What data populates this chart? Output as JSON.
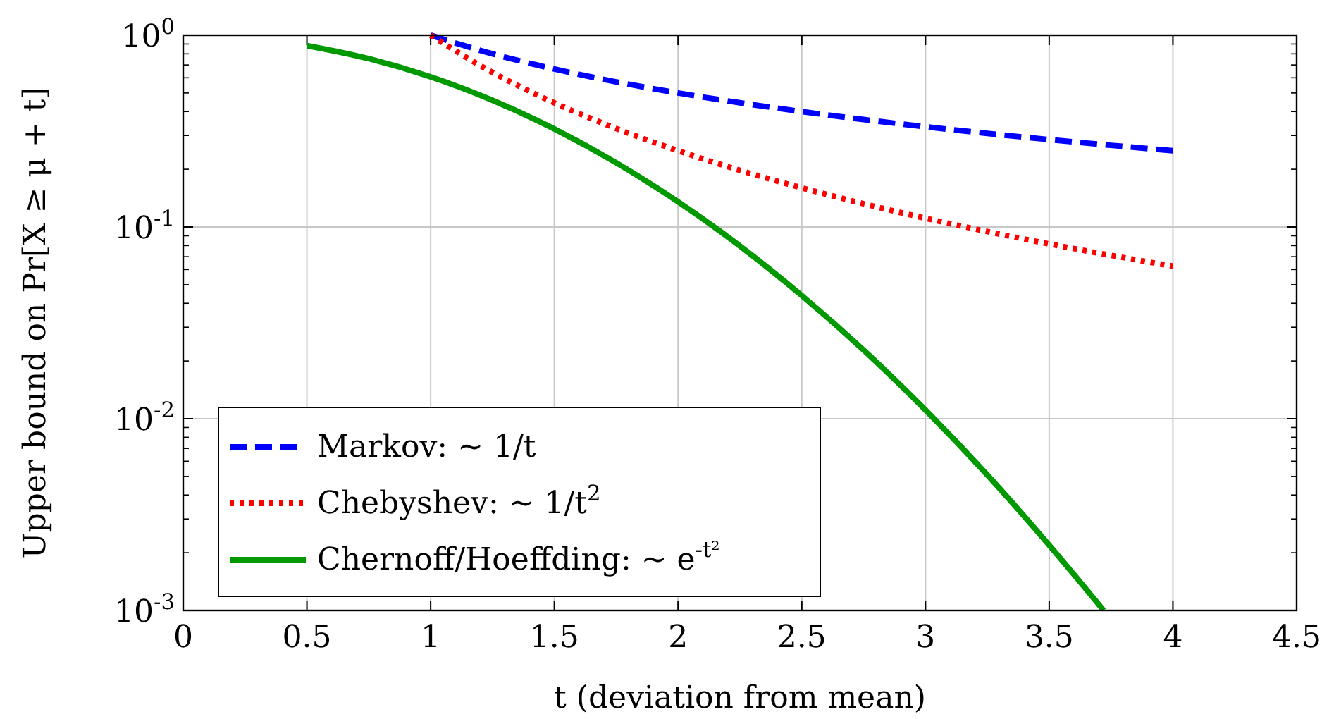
{
  "chart_data": {
    "type": "line",
    "xlabel": "t (deviation from mean)",
    "ylabel": "Upper bound on Pr[X ≥ μ + t]",
    "log": "y",
    "grid": true,
    "legend": "bottom left",
    "xlim": [
      0,
      4.5
    ],
    "xticks": [
      0,
      0.5,
      1,
      1.5,
      2,
      2.5,
      3,
      3.5,
      4,
      4.5
    ],
    "ylim": [
      0.001,
      1
    ],
    "yticks": [
      {
        "value": 0.001,
        "label": "10$^{-3}$"
      },
      {
        "value": 0.01,
        "label": "10$^{-2}$"
      },
      {
        "value": 0.1,
        "label": "10$^{-1}$"
      },
      {
        "value": 1,
        "label": "10$^{0}$"
      }
    ],
    "series": [
      {
        "name": "Markov: ∼ 1/t",
        "color": "#0000ff",
        "line_style": "dashed",
        "x": [
          1,
          1.25,
          1.5,
          1.75,
          2,
          2.25,
          2.5,
          2.75,
          3,
          3.25,
          3.5,
          3.75,
          4
        ],
        "values": [
          1,
          0.8,
          0.6667,
          0.5714,
          0.5,
          0.4444,
          0.4,
          0.3636,
          0.3333,
          0.3077,
          0.2857,
          0.2667,
          0.25
        ]
      },
      {
        "name": "Chebyshev: ∼ 1/t$^{2}$",
        "color": "#ff0000",
        "line_style": "dotted",
        "x": [
          1,
          1.25,
          1.5,
          1.75,
          2,
          2.25,
          2.5,
          2.75,
          3,
          3.25,
          3.5,
          3.75,
          4
        ],
        "values": [
          1,
          0.64,
          0.4444,
          0.3265,
          0.25,
          0.1975,
          0.16,
          0.1322,
          0.1111,
          0.0947,
          0.0816,
          0.0711,
          0.0625
        ]
      },
      {
        "name": "Chernoff/Hoeffding: ∼ e$^{-t²}$",
        "color": "#009900",
        "line_style": "solid",
        "x": [
          0.5,
          0.75,
          1,
          1.25,
          1.5,
          1.75,
          2,
          2.25,
          2.5,
          2.75,
          3,
          3.25,
          3.5,
          3.72
        ],
        "values": [
          0.8825,
          0.7548,
          0.6065,
          0.4578,
          0.3247,
          0.2163,
          0.1353,
          0.0796,
          0.0439,
          0.0228,
          0.0111,
          0.00509,
          0.00219,
          0.001
        ]
      }
    ]
  }
}
